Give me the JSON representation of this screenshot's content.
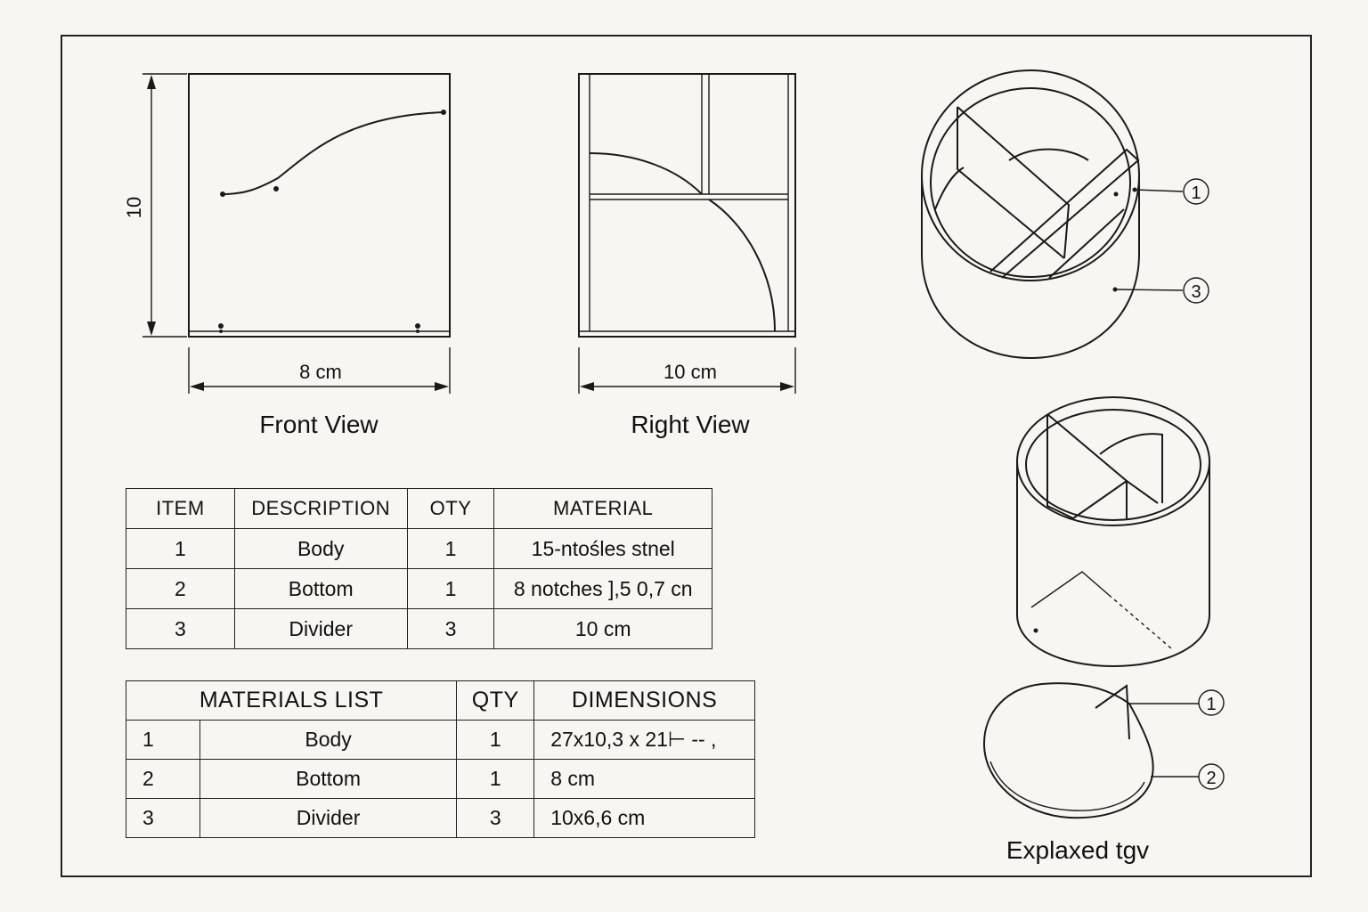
{
  "front_view": {
    "caption": "Front View",
    "height_dim": "10",
    "width_dim": "8 cm"
  },
  "right_view": {
    "caption": "Right View",
    "width_dim": "10 cm"
  },
  "exploded_view": {
    "caption": "Explaxed tgv",
    "callouts_top": [
      "1",
      "3"
    ],
    "callouts_bottom": [
      "1",
      "2"
    ]
  },
  "parts_table": {
    "headers": [
      "ITEM",
      "DESCRIPTION",
      "OTY",
      "MATERIAL"
    ],
    "rows": [
      [
        "1",
        "Body",
        "1",
        "15-ntośles stnel"
      ],
      [
        "2",
        "Bottom",
        "1",
        "8  notches  ],5 0,7 cn"
      ],
      [
        "3",
        "Divider",
        "3",
        "10 cm"
      ]
    ]
  },
  "materials_table": {
    "headers": [
      "MATERIALS LIST",
      "QTY",
      "DIMENSIONS"
    ],
    "rows": [
      [
        "1",
        "Body",
        "1",
        "27x10,3 x 21⊢ -- ,"
      ],
      [
        "2",
        "Bottom",
        "1",
        "8 cm"
      ],
      [
        "3",
        "Divider",
        "3",
        "10x6,6 cm"
      ]
    ]
  }
}
